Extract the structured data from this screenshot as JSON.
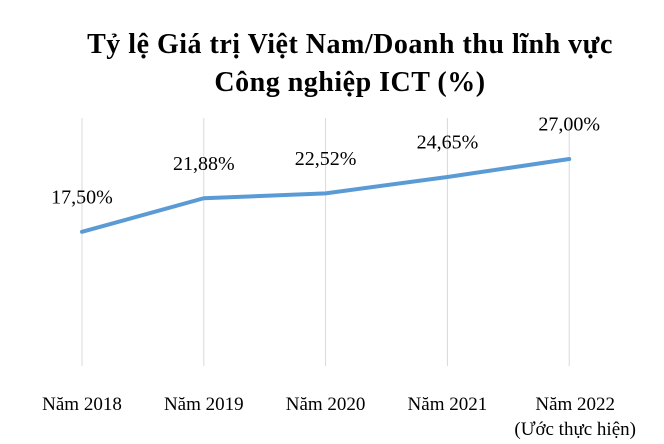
{
  "chart_data": {
    "type": "line",
    "title": "Tỷ lệ Giá trị Việt Nam/Doanh thu lĩnh vực Công nghiệp ICT (%)",
    "categories": [
      "Năm 2018",
      "Năm 2019",
      "Năm 2020",
      "Năm 2021",
      "Năm 2022\n(Ước thực hiện)"
    ],
    "series": [
      {
        "name": "Tỷ lệ",
        "color": "#5b9bd5",
        "values": [
          17.5,
          21.88,
          22.52,
          24.65,
          27.0
        ],
        "value_labels": [
          "17,50%",
          "21,88%",
          "22,52%",
          "24,65%",
          "27,00%"
        ]
      }
    ],
    "ylim": [
      0,
      30
    ],
    "grid": true
  }
}
